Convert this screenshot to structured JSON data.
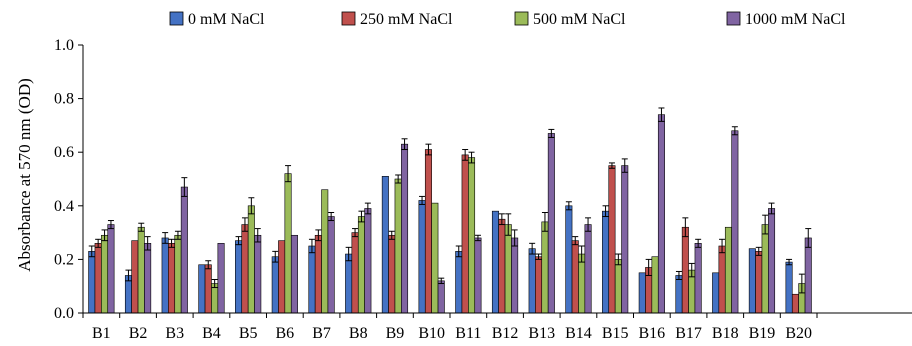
{
  "chart_data": {
    "type": "bar",
    "ylabel": "Absorbance at 570 nm (OD)",
    "ylim": [
      0,
      1.0
    ],
    "yticks": [
      "0.0",
      "0.2",
      "0.4",
      "0.6",
      "0.8",
      "1.0"
    ],
    "grid": false,
    "legend_position": "top",
    "categories": [
      "B1",
      "B2",
      "B3",
      "B4",
      "B5",
      "B6",
      "B7",
      "B8",
      "B9",
      "B10",
      "B11",
      "B12",
      "B13",
      "B14",
      "B15",
      "B16",
      "B17",
      "B18",
      "B19",
      "B20"
    ],
    "series": [
      {
        "name": "0 mM NaCl",
        "color": "#4472C4",
        "values": [
          0.23,
          0.14,
          0.28,
          0.18,
          0.27,
          0.21,
          0.25,
          0.22,
          0.51,
          0.42,
          0.23,
          0.38,
          0.24,
          0.4,
          0.38,
          0.15,
          0.14,
          0.15,
          0.24,
          0.19
        ],
        "errors": [
          0.02,
          0.02,
          0.02,
          0.0,
          0.015,
          0.02,
          0.025,
          0.025,
          0.0,
          0.015,
          0.02,
          0.0,
          0.02,
          0.015,
          0.02,
          0.0,
          0.015,
          0.0,
          0.0,
          0.01
        ]
      },
      {
        "name": "250 mM NaCl",
        "color": "#C0504D",
        "values": [
          0.26,
          0.27,
          0.26,
          0.18,
          0.33,
          0.27,
          0.29,
          0.3,
          0.29,
          0.61,
          0.59,
          0.35,
          0.21,
          0.27,
          0.55,
          0.17,
          0.32,
          0.25,
          0.23,
          0.07
        ],
        "errors": [
          0.015,
          0.0,
          0.015,
          0.015,
          0.025,
          0.0,
          0.02,
          0.015,
          0.015,
          0.02,
          0.02,
          0.02,
          0.01,
          0.015,
          0.01,
          0.03,
          0.035,
          0.025,
          0.015,
          0.0
        ]
      },
      {
        "name": "500 mM NaCl",
        "color": "#9BBB59",
        "values": [
          0.29,
          0.32,
          0.29,
          0.11,
          0.4,
          0.52,
          0.46,
          0.36,
          0.5,
          0.41,
          0.58,
          0.33,
          0.34,
          0.22,
          0.2,
          0.21,
          0.16,
          0.32,
          0.33,
          0.11
        ],
        "errors": [
          0.02,
          0.015,
          0.015,
          0.015,
          0.03,
          0.03,
          0.0,
          0.02,
          0.015,
          0.0,
          0.02,
          0.04,
          0.035,
          0.03,
          0.02,
          0.0,
          0.025,
          0.0,
          0.035,
          0.035
        ]
      },
      {
        "name": "1000 mM NaCl",
        "color": "#8064A2",
        "values": [
          0.33,
          0.26,
          0.47,
          0.26,
          0.29,
          0.29,
          0.36,
          0.39,
          0.63,
          0.12,
          0.28,
          0.28,
          0.67,
          0.33,
          0.55,
          0.74,
          0.26,
          0.68,
          0.39,
          0.28
        ],
        "errors": [
          0.015,
          0.025,
          0.035,
          0.0,
          0.025,
          0.0,
          0.015,
          0.02,
          0.02,
          0.01,
          0.01,
          0.03,
          0.015,
          0.025,
          0.025,
          0.025,
          0.015,
          0.015,
          0.02,
          0.035
        ]
      }
    ]
  }
}
